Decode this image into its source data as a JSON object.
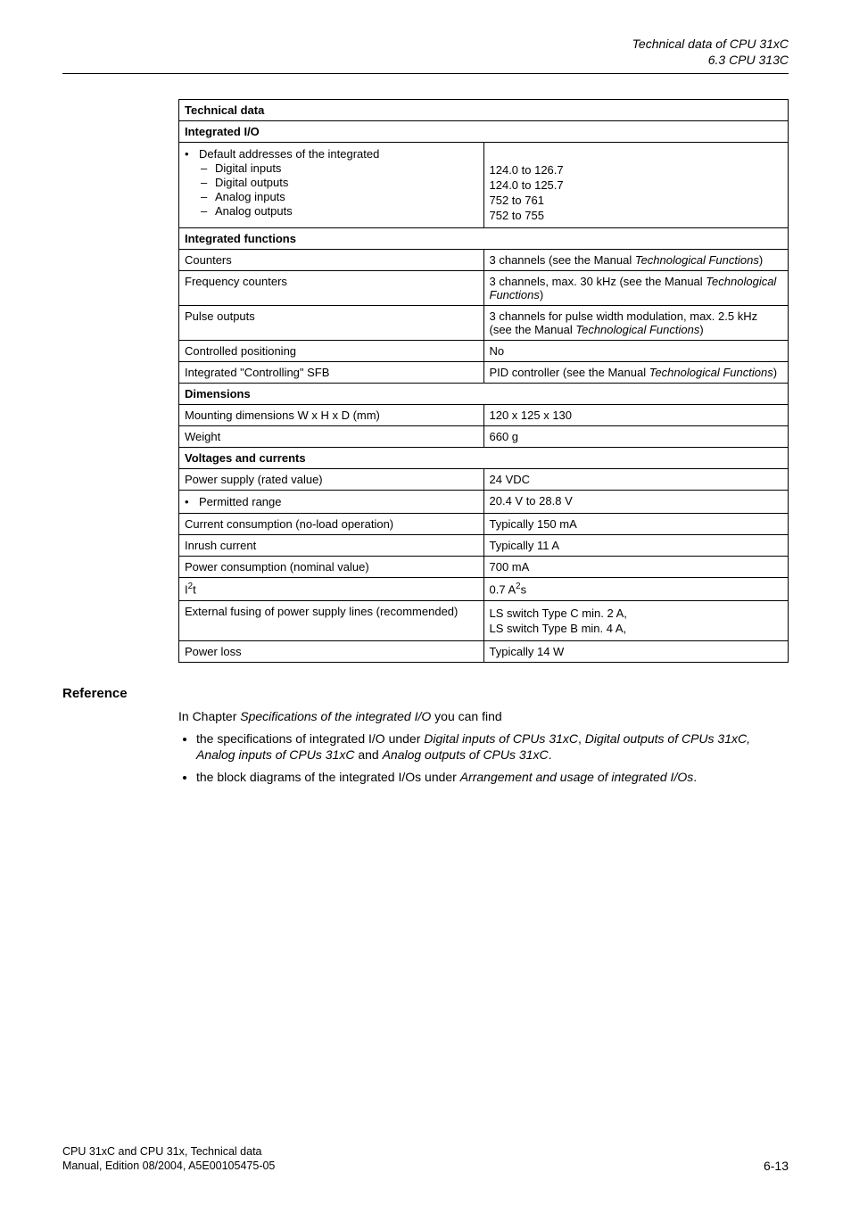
{
  "header": {
    "line1": "Technical data of CPU 31xC",
    "line2": "6.3 CPU 313C"
  },
  "table": {
    "title": "Technical data",
    "sec_io": "Integrated I/O",
    "default_addr": "Default addresses of the integrated",
    "digital_inputs_label": "Digital inputs",
    "digital_inputs_val": "124.0 to 126.7",
    "digital_outputs_label": "Digital outputs",
    "digital_outputs_val": "124.0 to 125.7",
    "analog_inputs_label": "Analog inputs",
    "analog_inputs_val": "752 to 761",
    "analog_outputs_label": "Analog outputs",
    "analog_outputs_val": "752 to 755",
    "sec_func": "Integrated functions",
    "counters_label": "Counters",
    "counters_val_a": "3 channels (see the Manual ",
    "counters_val_b": "Technological Functions",
    "counters_val_c": ")",
    "freq_label": "Frequency counters",
    "freq_val_a": "3 channels, max. 30 kHz (see the Manual ",
    "freq_val_b": "Technological Functions",
    "freq_val_c": ")",
    "pulse_label": "Pulse outputs",
    "pulse_val_a": "3 channels for pulse width modulation, max. 2.5 kHz (see the Manual ",
    "pulse_val_b": "Technological Functions",
    "pulse_val_c": ")",
    "ctrlpos_label": "Controlled positioning",
    "ctrlpos_val": "No",
    "sfb_label": "Integrated \"Controlling\" SFB",
    "sfb_val_a": "PID controller (see the Manual ",
    "sfb_val_b": "Technological Functions",
    "sfb_val_c": ")",
    "sec_dim": "Dimensions",
    "mount_label": "Mounting dimensions W x H x D (mm)",
    "mount_val": "120 x 125 x 130",
    "weight_label": "Weight",
    "weight_val": "660 g",
    "sec_volt": "Voltages and currents",
    "psupply_label": "Power supply (rated value)",
    "psupply_val": "24 VDC",
    "permit_label": "Permitted range",
    "permit_val": "20.4 V to 28.8 V",
    "current_label": "Current consumption (no-load operation)",
    "current_val": "Typically 150 mA",
    "inrush_label": "Inrush current",
    "inrush_val": "Typically 11 A",
    "pcons_label": "Power consumption (nominal value)",
    "pcons_val": "700 mA",
    "i2t_label_a": "I",
    "i2t_label_b": "2",
    "i2t_label_c": "t",
    "i2t_val_a": "0.7 A",
    "i2t_val_b": "2",
    "i2t_val_c": "s",
    "ext_label": "External fusing of power supply lines (recommended)",
    "ext_val1": "LS switch Type C min. 2 A,",
    "ext_val2": "LS switch Type B min. 4 A,",
    "ploss_label": "Power loss",
    "ploss_val": "Typically 14 W"
  },
  "reference": {
    "heading": "Reference",
    "intro_a": "In Chapter ",
    "intro_b": "Specifications of the integrated I/O",
    "intro_c": " you can find",
    "li1_a": "the specifications of integrated I/O under ",
    "li1_b": "Digital inputs of CPUs 31xC",
    "li1_c": ", ",
    "li1_d": "Digital outputs of CPUs 31xC, Analog inputs of CPUs 31xC",
    "li1_e": " and ",
    "li1_f": "Analog outputs of CPUs 31xC",
    "li1_g": ".",
    "li2_a": "the block diagrams of the integrated I/Os under ",
    "li2_b": "Arrangement and usage of integrated I/Os",
    "li2_c": "."
  },
  "footer": {
    "line1": "CPU 31xC and CPU 31x, Technical data",
    "line2": "Manual, Edition 08/2004, A5E00105475-05",
    "page": "6-13"
  }
}
